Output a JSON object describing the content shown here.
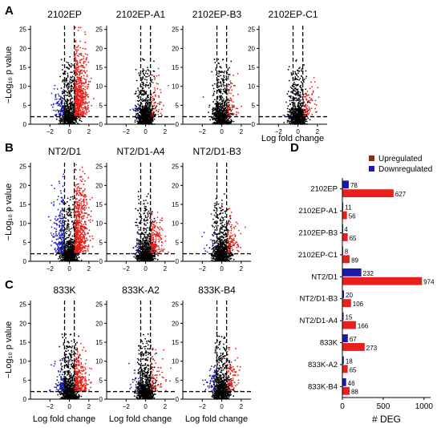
{
  "chart_data": [
    {
      "type": "scatter",
      "panel": "A",
      "subplots": [
        "2102EP",
        "2102EP-A1",
        "2102EP-B3",
        "2102EP-C1"
      ],
      "ylabel": "−Log₁₀ p value",
      "xlabel": "Log fold change",
      "xlim": [
        -4,
        3
      ],
      "ylim": [
        0,
        26
      ],
      "xticks": [
        -2,
        0,
        2
      ],
      "yticks": [
        0,
        5,
        10,
        15,
        20,
        25
      ],
      "thresholds": {
        "log_fold_change": [
          -0.5,
          0.5
        ],
        "neg_log10_p": 2
      },
      "series_colors": {
        "up": "#e8201c",
        "down": "#2020c8",
        "ns": "#000000"
      },
      "deg_counts": {
        "2102EP": {
          "up": 627,
          "down": 78
        },
        "2102EP-A1": {
          "up": 56,
          "down": 11
        },
        "2102EP-B3": {
          "up": 65,
          "down": 4
        },
        "2102EP-C1": {
          "up": 89,
          "down": 8
        }
      }
    },
    {
      "type": "scatter",
      "panel": "B",
      "subplots": [
        "NT2/D1",
        "NT2/D1-A4",
        "NT2/D1-B3"
      ],
      "ylabel": "−Log₁₀ p value",
      "xlabel": "",
      "xlim": [
        -4,
        3
      ],
      "ylim": [
        0,
        26
      ],
      "xticks": [
        -2,
        0,
        2
      ],
      "yticks": [
        0,
        5,
        10,
        15,
        20,
        25
      ],
      "thresholds": {
        "log_fold_change": [
          -0.5,
          0.5
        ],
        "neg_log10_p": 2
      },
      "deg_counts": {
        "NT2/D1": {
          "up": 974,
          "down": 232
        },
        "NT2/D1-A4": {
          "up": 166,
          "down": 15
        },
        "NT2/D1-B3": {
          "up": 106,
          "down": 20
        }
      }
    },
    {
      "type": "scatter",
      "panel": "C",
      "subplots": [
        "833K",
        "833K-A2",
        "833K-B4"
      ],
      "ylabel": "−Log₁₀ p value",
      "xlabel": "Log fold change",
      "xlim": [
        -4,
        3
      ],
      "ylim": [
        0,
        26
      ],
      "xticks": [
        -2,
        0,
        2
      ],
      "yticks": [
        0,
        5,
        10,
        15,
        20,
        25
      ],
      "thresholds": {
        "log_fold_change": [
          -0.5,
          0.5
        ],
        "neg_log10_p": 2
      },
      "deg_counts": {
        "833K": {
          "up": 273,
          "down": 67
        },
        "833K-A2": {
          "up": 65,
          "down": 18
        },
        "833K-B4": {
          "up": 88,
          "down": 46
        }
      }
    },
    {
      "type": "bar",
      "panel": "D",
      "orientation": "horizontal",
      "categories": [
        "2102EP",
        "2102EP-A1",
        "2102EP-B3",
        "2102EP-C1",
        "NT2/D1",
        "NT2/D1-B3",
        "NT2/D1-A4",
        "833K",
        "833K-A2",
        "833K-B4"
      ],
      "series": [
        {
          "name": "Downregulated",
          "color": "#1a1aa8",
          "values": [
            78,
            11,
            4,
            8,
            232,
            20,
            15,
            67,
            18,
            46
          ]
        },
        {
          "name": "Upregulated",
          "color": "#e8201c",
          "values": [
            627,
            56,
            65,
            89,
            974,
            106,
            166,
            273,
            65,
            88
          ]
        }
      ],
      "xlabel": "# DEG",
      "xlim": [
        0,
        1080
      ],
      "xticks": [
        0,
        500,
        1000
      ],
      "legend": {
        "position": "top-right",
        "entries": [
          "Upregulated",
          "Downregulated"
        ],
        "marker_colors": [
          "#8b2e1a",
          "#1a1aa8"
        ]
      }
    }
  ]
}
